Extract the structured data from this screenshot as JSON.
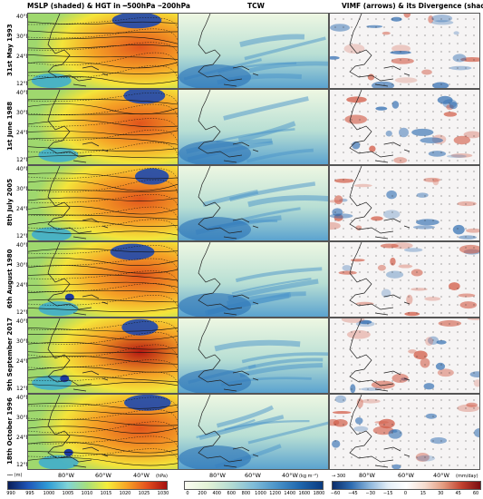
{
  "titles": {
    "col1": "MSLP (shaded) & HGT in  ━500hPa  ┅200hPa",
    "col2": "TCW",
    "col3": "VIMF (arrows) & its Divergence (shaded)"
  },
  "rows": [
    "31st May 1993",
    "1st June 1988",
    "8th July 2005",
    "6th August 1980",
    "9th September 2017",
    "18th October 1996"
  ],
  "lat_labels": [
    "40°N",
    "30°N",
    "24°N",
    "12°N"
  ],
  "lon_labels": {
    "c1": [
      "80°W",
      "60°W",
      "40°W"
    ],
    "c2": [
      "80°W",
      "60°W",
      "40°W"
    ],
    "c3": [
      "80°W",
      "60°W",
      "40°W"
    ]
  },
  "colorbars": {
    "mslp": {
      "ticks": [
        "990",
        "995",
        "1000",
        "1005",
        "1010",
        "1015",
        "1020",
        "1025",
        "1030"
      ],
      "unit": "(hPa)",
      "legend": "(m)"
    },
    "tcw": {
      "ticks": [
        "0",
        "200",
        "400",
        "600",
        "800",
        "1000",
        "1200",
        "1400",
        "1600",
        "1800"
      ],
      "unit": "(kg m⁻²)"
    },
    "vimf": {
      "ticks": [
        "−60",
        "−45",
        "−30",
        "−15",
        "0",
        "15",
        "30",
        "45",
        "60"
      ],
      "unit": "(mm/day)",
      "legend": "300"
    }
  },
  "colors": {
    "mslp_low": "#0a2ea8",
    "mslp_high": "#c8281a",
    "tcw_low": "#f4f9e8",
    "tcw_high": "#0b4f94",
    "vimf_neg": "#1d58a8",
    "vimf_pos": "#c53a2a"
  }
}
